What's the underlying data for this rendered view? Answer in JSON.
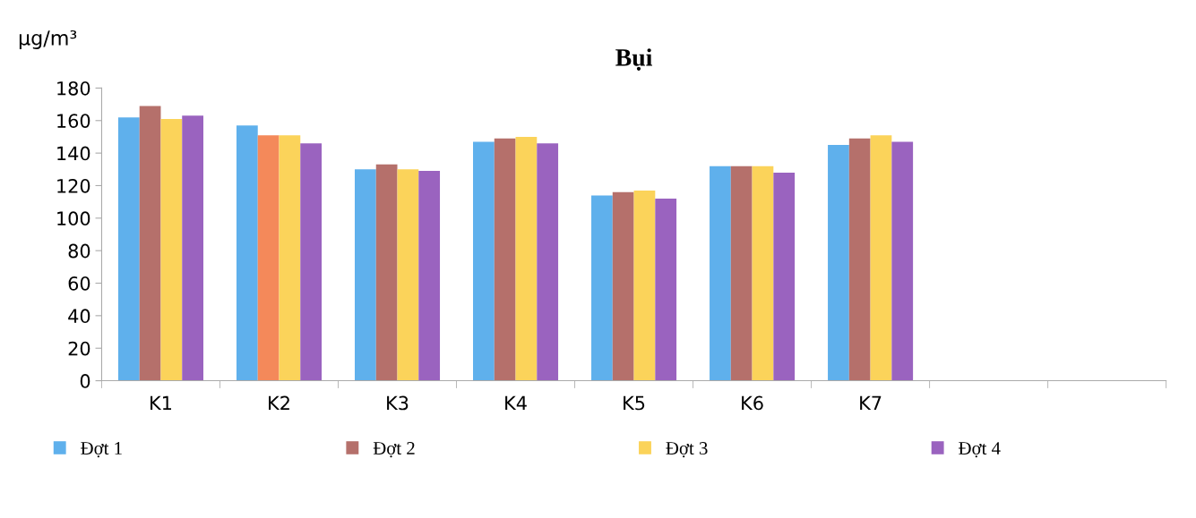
{
  "chart_data": {
    "type": "bar",
    "title": "Bụi",
    "ylabel": "µg/m³",
    "categories": [
      "K1",
      "K2",
      "K3",
      "K4",
      "K5",
      "K6",
      "K7",
      null,
      null
    ],
    "series": [
      {
        "name": "Đợt 1",
        "color": "#5fb0ec",
        "values": [
          162,
          157,
          130,
          147,
          114,
          132,
          145,
          null,
          null
        ]
      },
      {
        "name": "Đợt 2",
        "color": "#b5706b",
        "colors": [
          "#b5706b",
          "#f4895a",
          "#b5706b",
          "#b5706b",
          "#b5706b",
          "#b5706b",
          "#b5706b",
          "#b5706b",
          "#b5706b"
        ],
        "values": [
          169,
          151,
          133,
          149,
          116,
          132,
          149,
          null,
          null
        ]
      },
      {
        "name": "Đợt 3",
        "color": "#fbd35a",
        "values": [
          161,
          151,
          130,
          150,
          117,
          132,
          151,
          null,
          null
        ]
      },
      {
        "name": "Đợt 4",
        "color": "#9a63bf",
        "values": [
          163,
          146,
          129,
          146,
          112,
          128,
          147,
          null,
          null
        ]
      }
    ],
    "ylim": [
      0,
      180
    ],
    "yticks": [
      0,
      20,
      40,
      60,
      80,
      100,
      120,
      140,
      160,
      180
    ],
    "grid": false,
    "legend": "bottom"
  }
}
